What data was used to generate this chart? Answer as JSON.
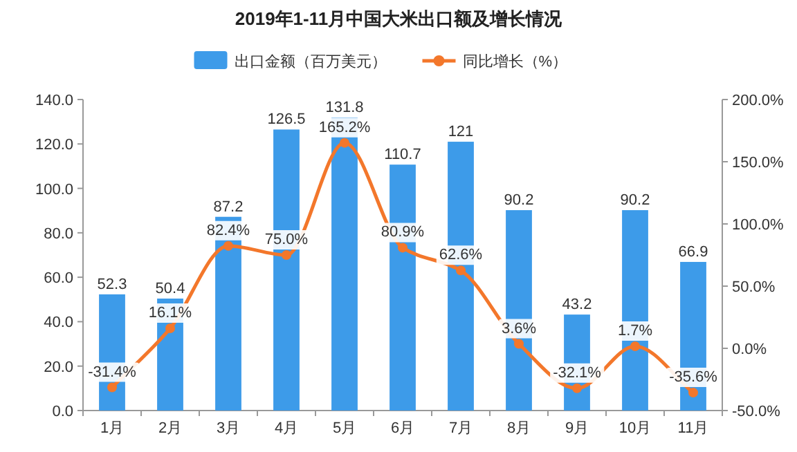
{
  "chart_data": {
    "type": "bar",
    "title": "2019年1-11月中国大米出口额及增长情况",
    "categories": [
      "1月",
      "2月",
      "3月",
      "4月",
      "5月",
      "6月",
      "7月",
      "8月",
      "9月",
      "10月",
      "11月"
    ],
    "series": [
      {
        "name": "出口金额（百万美元）",
        "color": "#3d9be9",
        "values": [
          52.3,
          50.4,
          87.2,
          126.5,
          131.8,
          110.7,
          121,
          90.2,
          43.2,
          90.2,
          66.9
        ],
        "value_labels": [
          "52.3",
          "50.4",
          "87.2",
          "126.5",
          "131.8",
          "110.7",
          "121",
          "90.2",
          "43.2",
          "90.2",
          "66.9"
        ]
      },
      {
        "name": "同比增长（%）",
        "type": "line",
        "axis": "y2",
        "color": "#f3772b",
        "marker": "circle",
        "values": [
          -31.4,
          16.1,
          82.4,
          75.0,
          165.2,
          80.9,
          62.6,
          3.6,
          -32.1,
          1.7,
          -35.6
        ],
        "value_labels": [
          "-31.4%",
          "16.1%",
          "82.4%",
          "75.0%",
          "165.2%",
          "80.9%",
          "62.6%",
          "3.6%",
          "-32.1%",
          "1.7%",
          "-35.6%"
        ]
      }
    ],
    "ylim": [
      0,
      140
    ],
    "yticks": [
      {
        "value": 0,
        "label": "0.0"
      },
      {
        "value": 20,
        "label": "20.0"
      },
      {
        "value": 40,
        "label": "40.0"
      },
      {
        "value": 60,
        "label": "60.0"
      },
      {
        "value": 80,
        "label": "80.0"
      },
      {
        "value": 100,
        "label": "100.0"
      },
      {
        "value": 120,
        "label": "120.0"
      },
      {
        "value": 140,
        "label": "140.0"
      }
    ],
    "y2lim": [
      -50,
      200
    ],
    "y2ticks": [
      {
        "value": -50,
        "label": "-50.0%"
      },
      {
        "value": 0,
        "label": "0.0%"
      },
      {
        "value": 50,
        "label": "50.0%"
      },
      {
        "value": 100,
        "label": "100.0%"
      },
      {
        "value": 150,
        "label": "150.0%"
      },
      {
        "value": 200,
        "label": "200.0%"
      }
    ],
    "legend": "top",
    "grid": false
  }
}
